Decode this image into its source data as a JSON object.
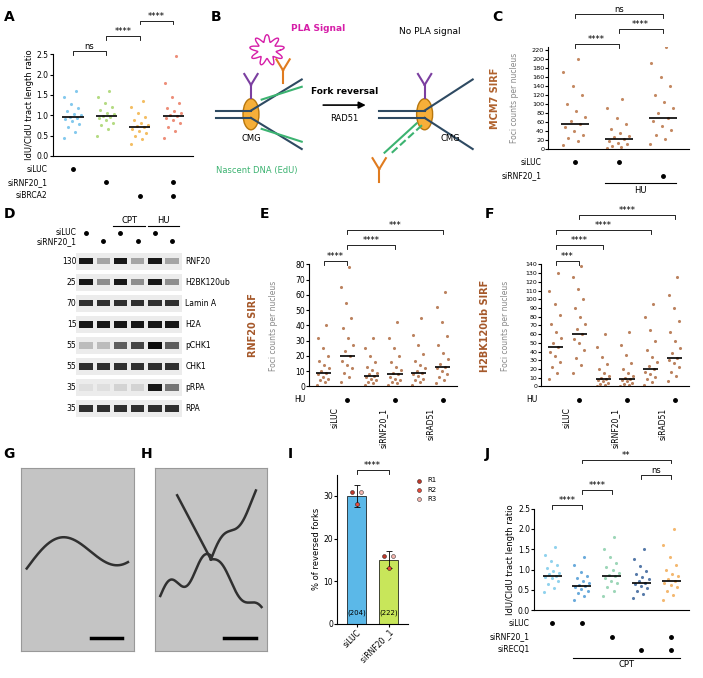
{
  "panel_labels": [
    "A",
    "B",
    "C",
    "D",
    "E",
    "F",
    "G",
    "H",
    "I",
    "J"
  ],
  "chart_data": [
    {
      "type": "strip",
      "y_label": "IdU/CldU tract length ratio",
      "ylim": [
        0,
        2.5
      ],
      "yticks": [
        {
          "value": 0,
          "label": "0.0"
        },
        {
          "value": 0.5,
          "label": "0.5"
        },
        {
          "value": 1,
          "label": "1.0"
        },
        {
          "value": 1.5,
          "label": "1.5"
        },
        {
          "value": 2,
          "label": "2.0"
        },
        {
          "value": 2.5,
          "label": "2.5"
        }
      ],
      "series": [
        {
          "color": "#5bb8e8",
          "median": 0.96,
          "values": [
            0.45,
            0.6,
            0.7,
            0.78,
            0.85,
            0.9,
            0.93,
            0.96,
            1.0,
            1.04,
            1.1,
            1.18,
            1.28,
            1.45,
            1.6
          ]
        },
        {
          "color": "#9ccf5a",
          "median": 0.98,
          "values": [
            0.5,
            0.65,
            0.75,
            0.82,
            0.88,
            0.93,
            0.96,
            0.99,
            1.02,
            1.06,
            1.12,
            1.2,
            1.3,
            1.45,
            1.6
          ]
        },
        {
          "color": "#f0a830",
          "median": 0.71,
          "values": [
            0.3,
            0.42,
            0.5,
            0.56,
            0.62,
            0.66,
            0.7,
            0.73,
            0.77,
            0.82,
            0.88,
            0.95,
            1.05,
            1.2,
            1.35
          ]
        },
        {
          "color": "#e86a4e",
          "median": 0.98,
          "values": [
            0.45,
            0.62,
            0.72,
            0.82,
            0.88,
            0.93,
            0.97,
            1.0,
            1.05,
            1.1,
            1.18,
            1.3,
            1.45,
            1.8,
            2.45
          ]
        }
      ],
      "significance": [
        {
          "from": 0,
          "to": 1,
          "label": "ns"
        },
        {
          "from": 1,
          "to": 2,
          "label": "****"
        },
        {
          "from": 2,
          "to": 3,
          "label": "****"
        }
      ],
      "condition_rows": [
        {
          "label": "siLUC",
          "marks": [
            true,
            false,
            false,
            false
          ]
        },
        {
          "label": "siRNF20_1",
          "marks": [
            false,
            true,
            false,
            true
          ]
        },
        {
          "label": "siBRCA2",
          "marks": [
            false,
            false,
            true,
            true
          ]
        }
      ]
    },
    {
      "type": "strip",
      "y_label": "MCM7 SIRF",
      "y_sublabel": "Foci counts per nucleus",
      "ylim": [
        0,
        225
      ],
      "yticks": [
        0,
        20,
        40,
        60,
        80,
        100,
        120,
        140,
        160,
        180,
        200,
        220
      ],
      "series": [
        {
          "color": "#b0622e",
          "median": 55,
          "values": [
            10,
            18,
            25,
            32,
            40,
            48,
            55,
            62,
            72,
            85,
            100,
            120,
            140,
            170,
            200
          ]
        },
        {
          "color": "#b0622e",
          "median": 22,
          "values": [
            2,
            5,
            8,
            11,
            14,
            18,
            22,
            26,
            30,
            36,
            44,
            55,
            70,
            90,
            110
          ]
        },
        {
          "color": "#b0622e",
          "median": 70,
          "values": [
            12,
            22,
            32,
            42,
            52,
            62,
            70,
            80,
            92,
            105,
            120,
            140,
            160,
            190,
            225
          ]
        }
      ],
      "significance": [
        {
          "from": 0,
          "to": 1,
          "label": "****"
        },
        {
          "from": 1,
          "to": 2,
          "label": "****"
        },
        {
          "from": 0,
          "to": 2,
          "label": "ns"
        }
      ],
      "condition_rows": [
        {
          "label": "siLUC",
          "marks": [
            true,
            true,
            false
          ]
        },
        {
          "label": "siRNF20_1",
          "marks": [
            false,
            false,
            true
          ]
        }
      ],
      "spans": [
        {
          "label": "HU",
          "from": 1,
          "to": 2
        }
      ]
    },
    {
      "type": "strip",
      "y_label": "RNF20 SIRF",
      "y_sublabel": "Foci counts per nucleus",
      "ylim": [
        0,
        80
      ],
      "yticks": [
        0,
        10,
        20,
        30,
        40,
        50,
        60,
        70,
        80
      ],
      "series": [
        {
          "color": "#a5582a",
          "median": 9,
          "values": [
            1,
            3,
            4,
            5,
            6,
            8,
            9,
            10,
            12,
            14,
            17,
            20,
            25,
            32,
            40
          ]
        },
        {
          "color": "#a5582a",
          "median": 20,
          "values": [
            3,
            6,
            9,
            12,
            14,
            17,
            20,
            23,
            27,
            32,
            38,
            45,
            55,
            65,
            78
          ]
        },
        {
          "color": "#a5582a",
          "median": 7,
          "values": [
            1,
            2,
            3,
            4,
            5,
            6,
            7,
            8,
            9,
            11,
            13,
            16,
            20,
            25,
            32
          ]
        },
        {
          "color": "#a5582a",
          "median": 8,
          "values": [
            1,
            2,
            3,
            4,
            5,
            6,
            8,
            9,
            11,
            13,
            16,
            20,
            25,
            32,
            42
          ]
        },
        {
          "color": "#a5582a",
          "median": 9,
          "values": [
            1,
            3,
            4,
            5,
            7,
            8,
            9,
            10,
            12,
            14,
            17,
            21,
            27,
            34,
            45
          ]
        },
        {
          "color": "#a5582a",
          "median": 13,
          "values": [
            2,
            4,
            6,
            8,
            10,
            12,
            13,
            15,
            18,
            22,
            27,
            33,
            42,
            52,
            62
          ]
        }
      ],
      "significance": [
        {
          "from": 0,
          "to": 1,
          "label": "****"
        },
        {
          "from": 1,
          "to": 3,
          "label": "****"
        },
        {
          "from": 1,
          "to": 5,
          "label": "***"
        }
      ],
      "condition_rows": [
        {
          "label": "HU",
          "marks": [
            false,
            true,
            false,
            true,
            false,
            true
          ]
        }
      ],
      "category_groups": [
        {
          "label": "siLUC",
          "from": 0,
          "to": 1
        },
        {
          "label": "siRNF20_1",
          "from": 2,
          "to": 3
        },
        {
          "label": "siRAD51",
          "from": 4,
          "to": 5
        }
      ]
    },
    {
      "type": "strip",
      "y_label": "H2BK120ub SIRF",
      "y_sublabel": "Foci counts per nucleus",
      "ylim": [
        0,
        140
      ],
      "yticks": [
        0,
        10,
        20,
        30,
        40,
        50,
        60,
        70,
        80,
        90,
        100,
        110,
        120,
        130,
        140
      ],
      "series": [
        {
          "color": "#a5582a",
          "median": 45,
          "values": [
            8,
            15,
            22,
            28,
            35,
            40,
            45,
            50,
            56,
            63,
            72,
            82,
            95,
            110,
            130
          ]
        },
        {
          "color": "#a5582a",
          "median": 60,
          "values": [
            15,
            25,
            33,
            42,
            50,
            55,
            60,
            66,
            72,
            80,
            90,
            100,
            112,
            125,
            138
          ]
        },
        {
          "color": "#a5582a",
          "median": 8,
          "values": [
            0,
            2,
            3,
            4,
            6,
            7,
            8,
            10,
            12,
            15,
            20,
            26,
            34,
            45,
            60
          ]
        },
        {
          "color": "#a5582a",
          "median": 8,
          "values": [
            0,
            2,
            3,
            4,
            6,
            7,
            8,
            10,
            12,
            15,
            20,
            27,
            36,
            48,
            62
          ]
        },
        {
          "color": "#a5582a",
          "median": 20,
          "values": [
            2,
            5,
            8,
            11,
            14,
            17,
            20,
            24,
            28,
            34,
            42,
            52,
            65,
            80,
            95
          ]
        },
        {
          "color": "#a5582a",
          "median": 33,
          "values": [
            6,
            12,
            17,
            22,
            27,
            30,
            33,
            38,
            44,
            52,
            62,
            75,
            90,
            105,
            125
          ]
        }
      ],
      "significance": [
        {
          "from": 0,
          "to": 1,
          "label": "***"
        },
        {
          "from": 0,
          "to": 2,
          "label": "****"
        },
        {
          "from": 0,
          "to": 4,
          "label": "****"
        },
        {
          "from": 1,
          "to": 5,
          "label": "****"
        }
      ],
      "condition_rows": [
        {
          "label": "HU",
          "marks": [
            false,
            true,
            false,
            true,
            false,
            true
          ]
        }
      ],
      "category_groups": [
        {
          "label": "siLUC",
          "from": 0,
          "to": 1
        },
        {
          "label": "siRNF20_1",
          "from": 2,
          "to": 3
        },
        {
          "label": "siRAD51",
          "from": 4,
          "to": 5
        }
      ]
    },
    {
      "type": "bar",
      "y_label": "% of reversed forks",
      "ylim": [
        0,
        35
      ],
      "yticks": [
        0,
        10,
        20,
        30
      ],
      "categories": [
        "siLUC",
        "siRNF20 _1"
      ],
      "values": [
        30,
        15
      ],
      "errors": [
        2.5,
        2
      ],
      "colors": [
        "#5bb8e8",
        "#c8e65a"
      ],
      "n_labels": [
        "(204)",
        "(222)"
      ],
      "replicates": [
        {
          "name": "R1",
          "color": "#c0392b",
          "values": [
            31,
            16
          ]
        },
        {
          "name": "R2",
          "color": "#e74c3c",
          "values": [
            28,
            13
          ]
        },
        {
          "name": "R3",
          "color": "#f5b7b1",
          "values": [
            31,
            16
          ]
        }
      ],
      "legend": "right",
      "significance": [
        {
          "from": 0,
          "to": 1,
          "label": "****"
        }
      ]
    },
    {
      "type": "strip",
      "y_label": "IdU/CldU tract length ratio",
      "ylim": [
        0,
        2.5
      ],
      "yticks": [
        {
          "value": 0,
          "label": "0.0"
        },
        {
          "value": 0.5,
          "label": "0.5"
        },
        {
          "value": 1,
          "label": "1.0"
        },
        {
          "value": 1.5,
          "label": "1.5"
        },
        {
          "value": 2,
          "label": "2.0"
        },
        {
          "value": 2.5,
          "label": "2.5"
        }
      ],
      "series": [
        {
          "color": "#6cc3e8",
          "median": 0.85,
          "values": [
            0.45,
            0.55,
            0.65,
            0.72,
            0.78,
            0.82,
            0.85,
            0.88,
            0.92,
            0.97,
            1.03,
            1.1,
            1.2,
            1.35,
            1.55
          ]
        },
        {
          "color": "#3a8fd0",
          "median": 0.6,
          "values": [
            0.25,
            0.35,
            0.42,
            0.48,
            0.52,
            0.56,
            0.6,
            0.63,
            0.67,
            0.72,
            0.78,
            0.85,
            0.95,
            1.1,
            1.3
          ]
        },
        {
          "color": "#7cc9a0",
          "median": 0.83,
          "values": [
            0.35,
            0.48,
            0.58,
            0.66,
            0.72,
            0.78,
            0.83,
            0.87,
            0.92,
            0.98,
            1.05,
            1.15,
            1.3,
            1.5,
            1.8
          ]
        },
        {
          "color": "#1f4e8c",
          "median": 0.68,
          "values": [
            0.3,
            0.4,
            0.48,
            0.55,
            0.6,
            0.64,
            0.68,
            0.72,
            0.76,
            0.82,
            0.88,
            0.97,
            1.08,
            1.25,
            1.5
          ]
        },
        {
          "color": "#f0a040",
          "median": 0.72,
          "values": [
            0.25,
            0.38,
            0.48,
            0.56,
            0.62,
            0.67,
            0.72,
            0.77,
            0.83,
            0.9,
            0.98,
            1.1,
            1.3,
            1.6,
            2.0
          ]
        }
      ],
      "significance": [
        {
          "from": 0,
          "to": 1,
          "label": "****"
        },
        {
          "from": 1,
          "to": 2,
          "label": "****"
        },
        {
          "from": 3,
          "to": 4,
          "label": "ns"
        },
        {
          "from": 1,
          "to": 4,
          "label": "**"
        }
      ],
      "condition_rows": [
        {
          "label": "siLUC",
          "marks": [
            true,
            true,
            false,
            false,
            false
          ]
        },
        {
          "label": "siRNF20_1",
          "marks": [
            false,
            false,
            true,
            false,
            true
          ]
        },
        {
          "label": "siRECQ1",
          "marks": [
            false,
            false,
            false,
            true,
            true
          ]
        }
      ],
      "spans": [
        {
          "label": "CPT",
          "from": 1,
          "to": 4
        }
      ]
    }
  ],
  "diagram": {
    "pla": "PLA Signal",
    "no_pla": "No PLA signal",
    "nascent": "Nascent DNA (EdU)",
    "arrow_top": "Fork reversal",
    "arrow_bottom": "RAD51",
    "cmg_left": "CMG",
    "cmg_right": "CMG"
  },
  "blot": {
    "spans": [
      {
        "label": "CPT",
        "from": 2,
        "to": 3
      },
      {
        "label": "HU",
        "from": 4,
        "to": 5
      }
    ],
    "lane_rows": [
      {
        "label": "siLUC",
        "marks": [
          true,
          false,
          true,
          false,
          true,
          false
        ]
      },
      {
        "label": "siRNF20_1",
        "marks": [
          false,
          true,
          false,
          true,
          false,
          true
        ]
      }
    ],
    "bands": [
      {
        "label": "RNF20",
        "mw": 130,
        "intensity": [
          0.9,
          0.3,
          0.9,
          0.3,
          0.9,
          0.3
        ]
      },
      {
        "label": "H2BK120ub",
        "mw": 25,
        "intensity": [
          0.9,
          0.4,
          0.9,
          0.4,
          0.9,
          0.4
        ]
      },
      {
        "label": "Lamin A",
        "mw": 70,
        "intensity": [
          0.8,
          0.8,
          0.8,
          0.8,
          0.8,
          0.8
        ]
      },
      {
        "label": "H2A",
        "mw": 15,
        "intensity": [
          0.9,
          0.9,
          0.9,
          0.9,
          0.9,
          0.9
        ]
      },
      {
        "label": "pCHK1",
        "mw": 55,
        "intensity": [
          0.2,
          0.2,
          0.6,
          0.7,
          0.95,
          0.6
        ]
      },
      {
        "label": "CHK1",
        "mw": 55,
        "intensity": [
          0.8,
          0.8,
          0.8,
          0.8,
          0.8,
          0.8
        ]
      },
      {
        "label": "pRPA",
        "mw": 35,
        "intensity": [
          0.05,
          0.05,
          0.1,
          0.1,
          0.9,
          0.5
        ]
      },
      {
        "label": "RPA",
        "mw": 35,
        "intensity": [
          0.8,
          0.8,
          0.8,
          0.8,
          0.8,
          0.8
        ]
      }
    ]
  }
}
